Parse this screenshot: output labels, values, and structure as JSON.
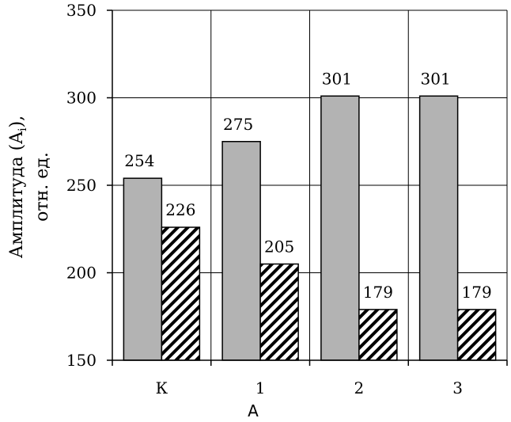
{
  "chart_data": {
    "type": "bar",
    "title": "",
    "categories": [
      "К",
      "1",
      "2",
      "3"
    ],
    "series": [
      {
        "values": [
          254,
          275,
          301,
          301
        ],
        "color": "#b3b3b3",
        "pattern": "solid"
      },
      {
        "values": [
          226,
          205,
          179,
          179
        ],
        "color": "#000000",
        "pattern": "diagonal-hatch"
      }
    ],
    "ylim": [
      150,
      350
    ],
    "yticks": [
      "150",
      "200",
      "250",
      "300",
      "350"
    ],
    "ylabel_line1": "Амплитуда  (A",
    "ylabel_sub": "i",
    "ylabel_line1_end": "),",
    "ylabel_line2": "отн. ед.",
    "xlabel": "A",
    "grid": true,
    "legend": "none"
  }
}
